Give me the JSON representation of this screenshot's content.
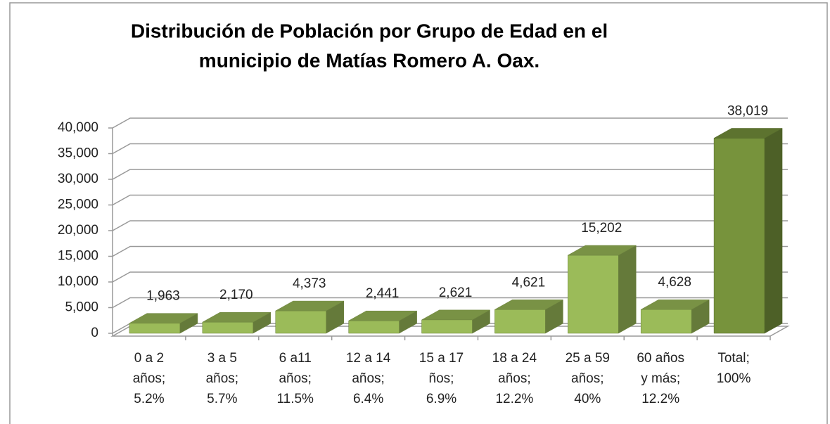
{
  "chart_data": {
    "type": "bar3d",
    "title": [
      "Distribución de Población por Grupo de Edad en el",
      "municipio de Matías Romero A. Oax."
    ],
    "categories": [
      [
        "0 a 2",
        "años;",
        "5.2%"
      ],
      [
        "3 a 5",
        "años;",
        "5.7%"
      ],
      [
        "6 a11",
        "años;",
        "11.5%"
      ],
      [
        "12 a 14",
        "años;",
        "6.4%"
      ],
      [
        "15 a 17",
        "ños;",
        "6.9%"
      ],
      [
        "18 a 24",
        "años;",
        "12.2%"
      ],
      [
        "25 a 59",
        "años;",
        "40%"
      ],
      [
        "60 años",
        "y más;",
        "12.2%"
      ],
      [
        "Total;",
        "100%"
      ]
    ],
    "values": [
      1963,
      2170,
      4373,
      2441,
      2621,
      4621,
      15202,
      4628,
      38019
    ],
    "value_labels": [
      "1,963",
      "2,170",
      "4,373",
      "2,441",
      "2,621",
      "4,621",
      "15,202",
      "4,628",
      "38,019"
    ],
    "colors": [
      "#9bbb59",
      "#9bbb59",
      "#9bbb59",
      "#9bbb59",
      "#9bbb59",
      "#9bbb59",
      "#9bbb59",
      "#9bbb59",
      "#77933c"
    ],
    "ylim": [
      0,
      40000
    ],
    "yticks": [
      0,
      {
        "value": 5000,
        "label": "5,000"
      },
      {
        "value": 10000,
        "label": "10,000"
      },
      {
        "value": 15000,
        "label": "15,000"
      },
      {
        "value": 20000,
        "label": "20,000"
      },
      {
        "value": 25000,
        "label": "25,000"
      },
      {
        "value": 30000,
        "label": "30,000"
      },
      {
        "value": 35000,
        "label": "35,000"
      },
      {
        "value": 40000,
        "label": "40,000"
      }
    ],
    "grid": true
  }
}
